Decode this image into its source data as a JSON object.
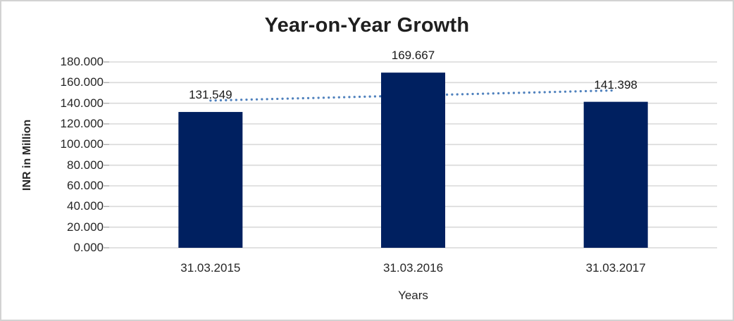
{
  "chart_data": {
    "type": "bar",
    "title": "Year-on-Year Growth",
    "xlabel": "Years",
    "ylabel": "INR in Million",
    "categories": [
      "31.03.2015",
      "31.03.2016",
      "31.03.2017"
    ],
    "values": [
      131.549,
      169.667,
      141.398
    ],
    "value_labels": [
      "131.549",
      "169.667",
      "141.398"
    ],
    "ylim": [
      0,
      180
    ],
    "y_tick_step": 20,
    "y_ticks": [
      "0.000",
      "20.000",
      "40.000",
      "60.000",
      "80.000",
      "100.000",
      "120.000",
      "140.000",
      "160.000",
      "180.000"
    ],
    "grid": "horizontal",
    "legend": "none",
    "bar_color": "#002060",
    "gridline_color": "#d9d9d9",
    "tick_mark_color": "#ababab",
    "text_color": "#262626",
    "background": "#ffffff",
    "border_color": "#d2d2d2",
    "trendline": {
      "present": true,
      "fit": "linear",
      "style": "dotted",
      "color": "#4f81bd"
    }
  }
}
